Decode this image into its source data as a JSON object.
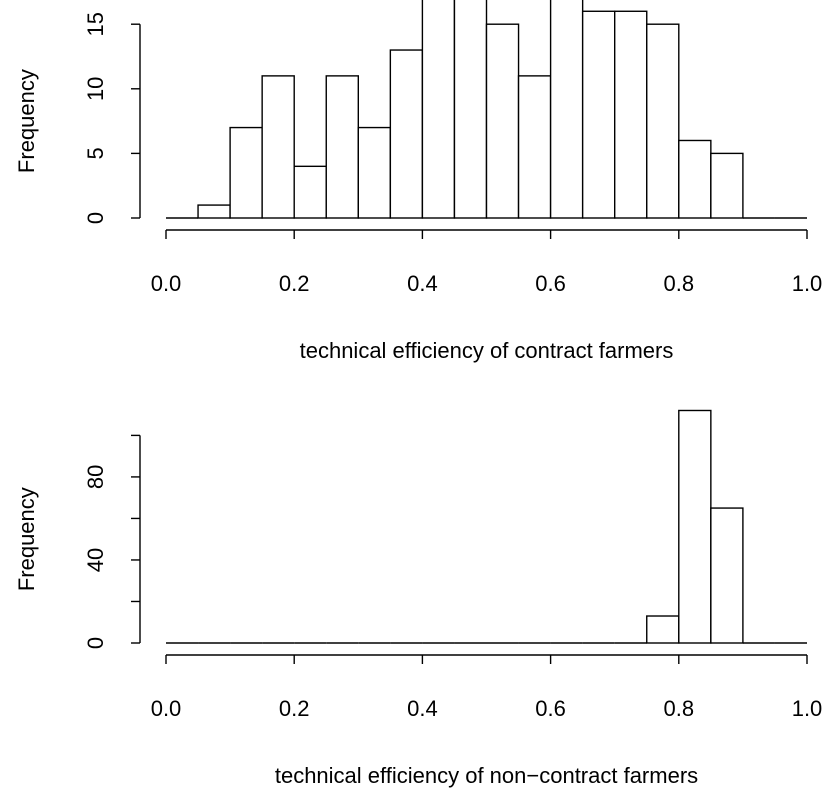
{
  "chart_data": [
    {
      "type": "bar",
      "xlabel": "technical efficiency of contract farmers",
      "ylabel": "Frequency",
      "xlim": [
        0.0,
        1.0
      ],
      "ylim": [
        0,
        17
      ],
      "x_ticks": [
        "0.0",
        "0.2",
        "0.4",
        "0.6",
        "0.8",
        "1.0"
      ],
      "y_ticks": [
        "0",
        "5",
        "10",
        "15"
      ],
      "bin_width": 0.05,
      "bin_edges": [
        0.0,
        0.05,
        0.1,
        0.15,
        0.2,
        0.25,
        0.3,
        0.35,
        0.4,
        0.45,
        0.5,
        0.55,
        0.6,
        0.65,
        0.7,
        0.75,
        0.8,
        0.85,
        0.9,
        0.95,
        1.0
      ],
      "values": [
        0,
        1,
        7,
        11,
        4,
        11,
        7,
        13,
        17,
        17,
        15,
        11,
        17,
        16,
        16,
        15,
        6,
        5,
        0,
        0
      ]
    },
    {
      "type": "bar",
      "xlabel": "technical efficiency of non−contract farmers",
      "ylabel": "Frequency",
      "xlim": [
        0.0,
        1.0
      ],
      "ylim": [
        0,
        100
      ],
      "x_ticks": [
        "0.0",
        "0.2",
        "0.4",
        "0.6",
        "0.8",
        "1.0"
      ],
      "y_ticks": [
        "0",
        "40",
        "80"
      ],
      "y_minor_ticks": [
        20,
        60,
        100
      ],
      "bin_width": 0.05,
      "bin_edges": [
        0.0,
        0.05,
        0.1,
        0.15,
        0.2,
        0.25,
        0.3,
        0.35,
        0.4,
        0.45,
        0.5,
        0.55,
        0.6,
        0.65,
        0.7,
        0.75,
        0.8,
        0.85,
        0.9,
        0.95,
        1.0
      ],
      "values": [
        0,
        0,
        0,
        0,
        0,
        0,
        0,
        0,
        0,
        0,
        0,
        0,
        0,
        0,
        0,
        13,
        112,
        65,
        0,
        0
      ]
    }
  ]
}
